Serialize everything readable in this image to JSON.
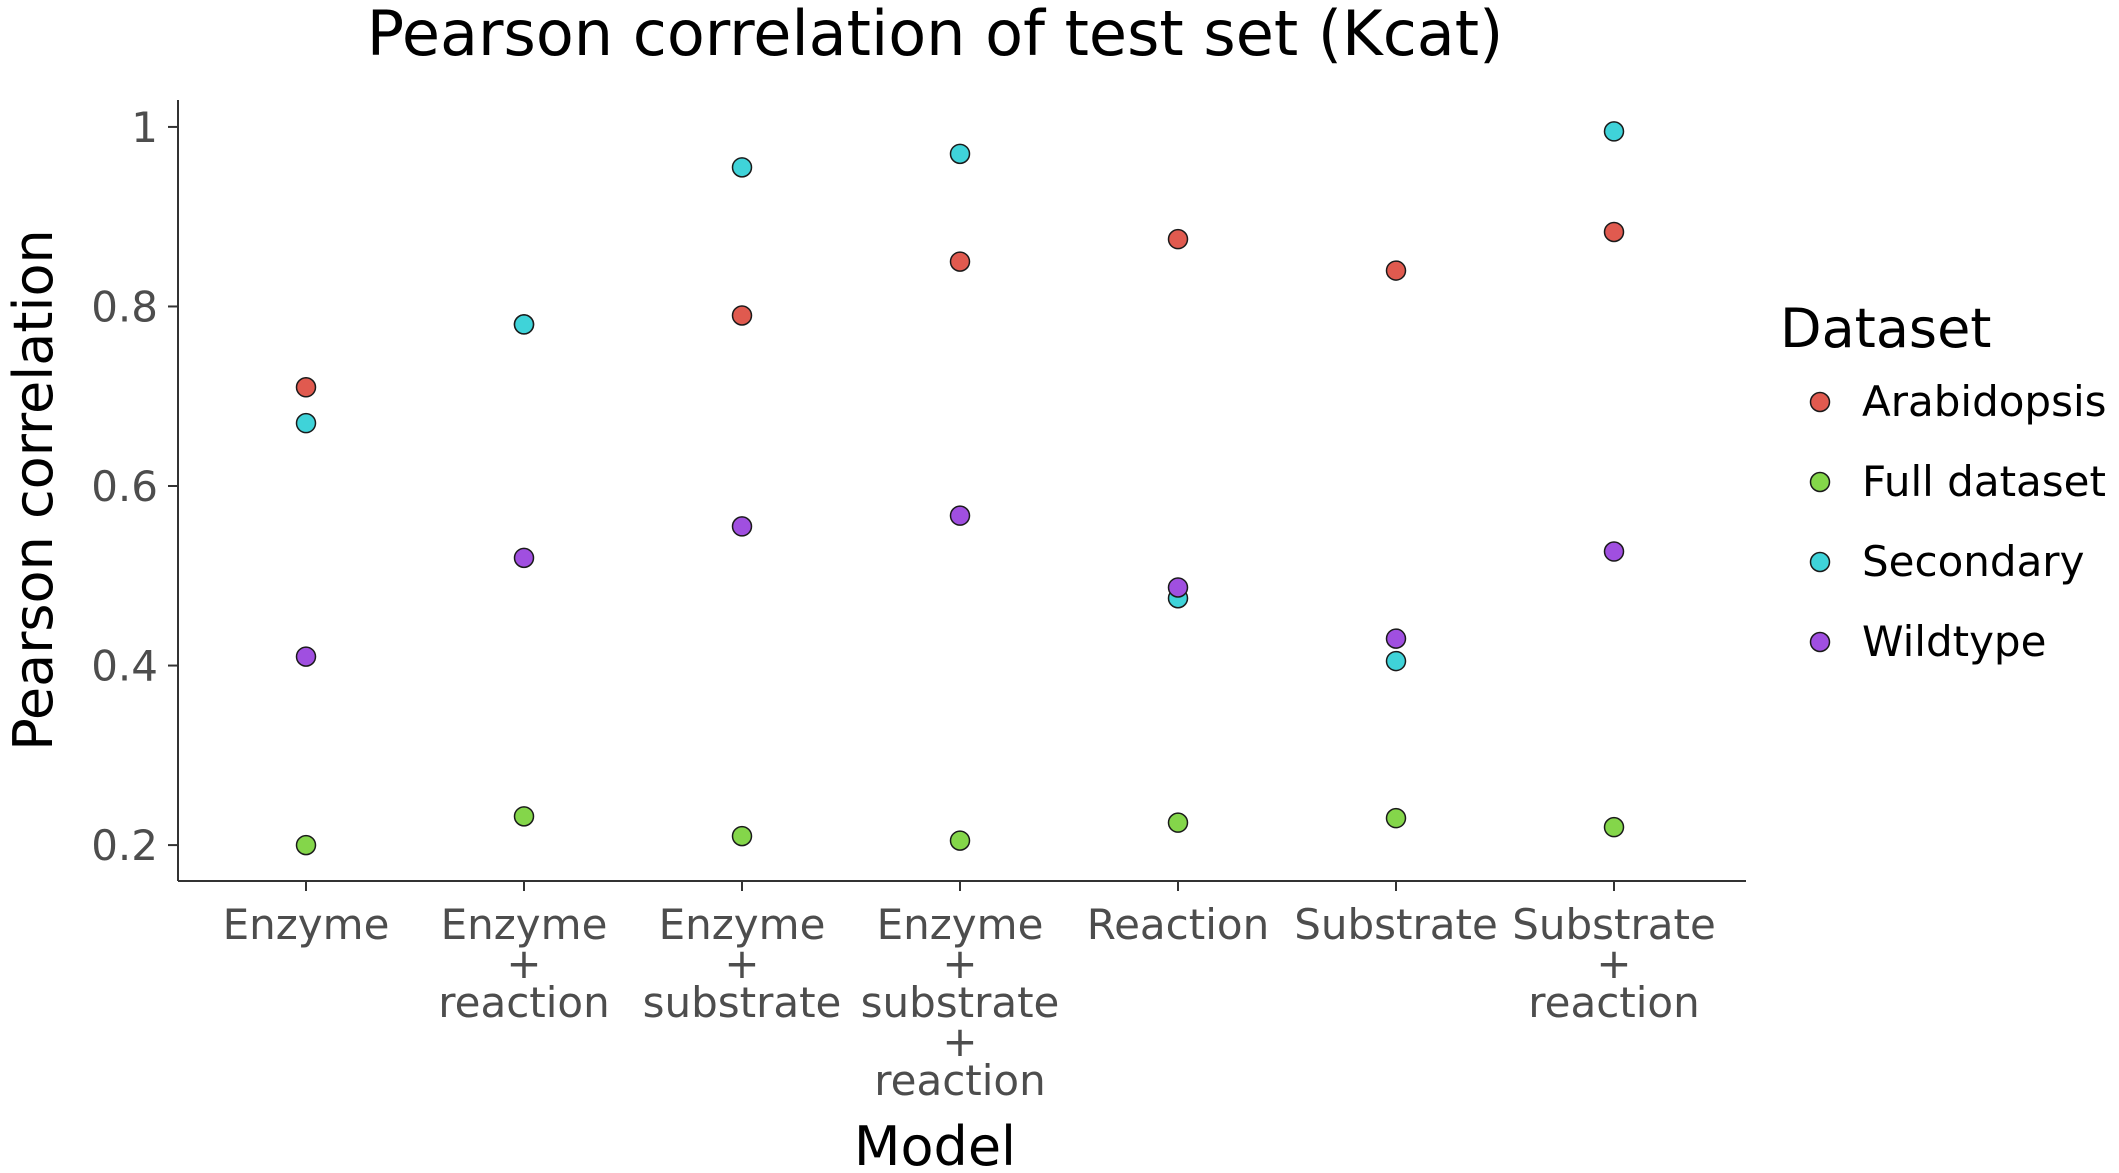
{
  "chart_data": {
    "type": "scatter",
    "title": "Pearson correlation of test set (Kcat)",
    "xlabel": "Model",
    "ylabel": "Pearson correlation",
    "categories": [
      [
        "Enzyme"
      ],
      [
        "Enzyme",
        "+",
        "reaction"
      ],
      [
        "Enzyme",
        "+",
        "substrate"
      ],
      [
        "Enzyme",
        "+",
        "substrate",
        "+",
        "reaction"
      ],
      [
        "Reaction"
      ],
      [
        "Substrate"
      ],
      [
        "Substrate",
        "+",
        "reaction"
      ]
    ],
    "ylim": [
      0.16,
      1.03
    ],
    "yticks": [
      0.2,
      0.4,
      0.6,
      0.8,
      1.0
    ],
    "ytick_labels": [
      "0.2",
      "0.4",
      "0.6",
      "0.8",
      "1"
    ],
    "grid": false,
    "legend": {
      "title": "Dataset",
      "placement": "right"
    },
    "series": [
      {
        "name": "Arabidopsis",
        "color": "#e05a4f",
        "values": [
          0.71,
          0.78,
          0.79,
          0.85,
          0.875,
          0.84,
          0.883
        ]
      },
      {
        "name": "Full dataset",
        "color": "#84d64a",
        "values": [
          0.2,
          0.232,
          0.21,
          0.205,
          0.225,
          0.23,
          0.22
        ]
      },
      {
        "name": "Secondary",
        "color": "#3fd3d9",
        "values": [
          0.67,
          0.78,
          0.955,
          0.97,
          0.475,
          0.405,
          0.995
        ]
      },
      {
        "name": "Wildtype",
        "color": "#a04fe0",
        "values": [
          0.41,
          0.52,
          0.555,
          0.567,
          0.487,
          0.43,
          0.527
        ]
      }
    ]
  }
}
